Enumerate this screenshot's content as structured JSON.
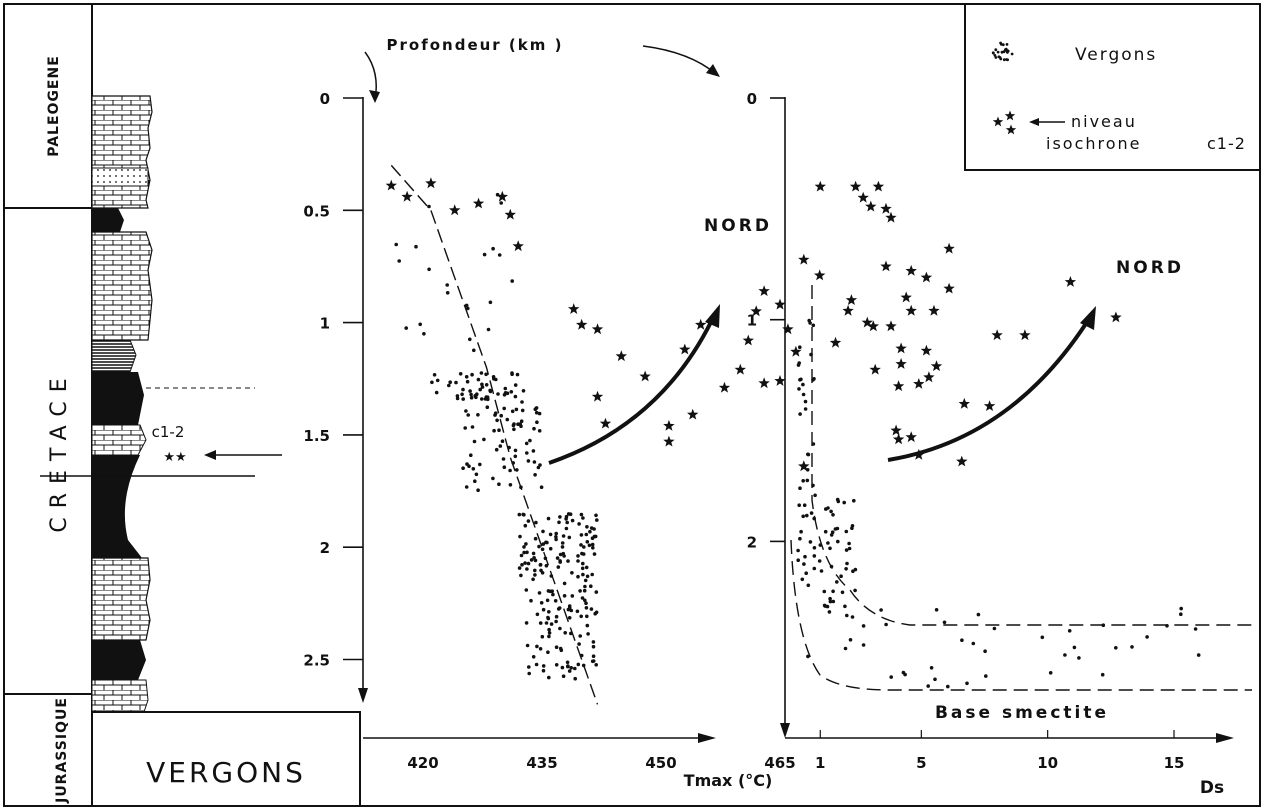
{
  "header": {
    "depth_label": "Profondeur (km )"
  },
  "stratigraphy": {
    "periods": [
      "PALEOGENE",
      "CRETACE",
      "JURASSIQUE"
    ],
    "level_label": "c1-2",
    "level_markers": "★★",
    "section_name": "VERGONS"
  },
  "legend": {
    "vergons_label": "Vergons",
    "niveau_label": "niveau",
    "isochrone_label": "isochrone",
    "isochrone_code": "c1-2"
  },
  "chart_data": [
    {
      "type": "scatter",
      "title": "",
      "xlabel": "Tmax (°C)",
      "ylabel": "Profondeur (km )",
      "x_ticks": [
        420,
        435,
        450,
        465
      ],
      "y_ticks": [
        0,
        0.5,
        1,
        1.5,
        2,
        2.5
      ],
      "y_tick_labels": [
        "0",
        "0.5",
        "1",
        "1.5",
        "2",
        "2.5"
      ],
      "y_inverted": true,
      "annotation": "NORD",
      "trend_line": [
        [
          416,
          0.3
        ],
        [
          421,
          0.5
        ],
        [
          424,
          0.8
        ],
        [
          428,
          1.2
        ],
        [
          431,
          1.6
        ],
        [
          435,
          2.0
        ],
        [
          439,
          2.4
        ],
        [
          442,
          2.7
        ]
      ],
      "series": [
        {
          "name": "Vergons",
          "marker": "dot",
          "clusters": [
            {
              "x_range": [
                416,
                432
              ],
              "y_range": [
                0.4,
                1.2
              ],
              "count": 22
            },
            {
              "x_range": [
                421,
                432
              ],
              "y_range": [
                1.22,
                1.34
              ],
              "count": 40
            },
            {
              "x_range": [
                425,
                435
              ],
              "y_range": [
                1.3,
                1.75
              ],
              "count": 80
            },
            {
              "x_range": [
                432,
                442
              ],
              "y_range": [
                1.85,
                2.15
              ],
              "count": 100
            },
            {
              "x_range": [
                433,
                442
              ],
              "y_range": [
                2.15,
                2.6
              ],
              "count": 90
            }
          ]
        },
        {
          "name": "niveau isochrone c1-2",
          "marker": "star",
          "points": [
            [
              416,
              0.39
            ],
            [
              418,
              0.44
            ],
            [
              421,
              0.38
            ],
            [
              424,
              0.5
            ],
            [
              427,
              0.47
            ],
            [
              430,
              0.44
            ],
            [
              431,
              0.52
            ],
            [
              432,
              0.66
            ],
            [
              439,
              0.94
            ],
            [
              440,
              1.01
            ],
            [
              442,
              1.03
            ],
            [
              445,
              1.15
            ],
            [
              448,
              1.24
            ],
            [
              451,
              1.53
            ],
            [
              453,
              1.12
            ],
            [
              455,
              1.01
            ],
            [
              458,
              1.29
            ],
            [
              460,
              1.21
            ],
            [
              461,
              1.08
            ],
            [
              462,
              0.95
            ],
            [
              463,
              0.86
            ],
            [
              465,
              0.92
            ],
            [
              466,
              1.03
            ],
            [
              467,
              1.13
            ],
            [
              468,
              0.72
            ],
            [
              470,
              0.79
            ],
            [
              472,
              1.09
            ],
            [
              474,
              0.9
            ],
            [
              476,
              1.0
            ],
            [
              477,
              1.21
            ],
            [
              465,
              1.26
            ],
            [
              463,
              1.27
            ],
            [
              454,
              1.41
            ],
            [
              451,
              1.46
            ],
            [
              443,
              1.45
            ],
            [
              442,
              1.33
            ],
            [
              468,
              1.64
            ]
          ]
        }
      ]
    },
    {
      "type": "scatter",
      "title": "",
      "xlabel": "Ds",
      "ylabel": "Profondeur (km )",
      "x_ticks": [
        1,
        5,
        10,
        15
      ],
      "y_ticks": [
        0,
        1,
        2
      ],
      "y_tick_labels": [
        "0",
        "1",
        "2"
      ],
      "y_inverted": true,
      "annotation": "NORD",
      "band_label": "Base smectite",
      "series": [
        {
          "name": "Vergons",
          "marker": "dot",
          "clusters": [
            {
              "x_range": [
                0.1,
                0.8
              ],
              "y_range": [
                1.0,
                2.2
              ],
              "count": 45
            },
            {
              "x_range": [
                0.9,
                2.4
              ],
              "y_range": [
                1.8,
                2.35
              ],
              "count": 45
            },
            {
              "x_range": [
                0.5,
                16
              ],
              "y_range": [
                2.3,
                2.67
              ],
              "count": 40
            }
          ]
        },
        {
          "name": "niveau isochrone c1-2",
          "marker": "star",
          "points": [
            [
              1,
              0.4
            ],
            [
              2.4,
              0.4
            ],
            [
              3.3,
              0.4
            ],
            [
              2.7,
              0.45
            ],
            [
              3.0,
              0.49
            ],
            [
              3.6,
              0.5
            ],
            [
              3.8,
              0.54
            ],
            [
              6.1,
              0.68
            ],
            [
              3.6,
              0.76
            ],
            [
              4.6,
              0.78
            ],
            [
              5.2,
              0.81
            ],
            [
              6.1,
              0.86
            ],
            [
              4.4,
              0.9
            ],
            [
              2.1,
              0.96
            ],
            [
              4.6,
              0.96
            ],
            [
              5.5,
              0.96
            ],
            [
              3.1,
              1.03
            ],
            [
              3.8,
              1.03
            ],
            [
              4.2,
              1.13
            ],
            [
              5.2,
              1.14
            ],
            [
              4.1,
              1.3
            ],
            [
              4.9,
              1.29
            ],
            [
              5.3,
              1.26
            ],
            [
              5.6,
              1.21
            ],
            [
              4.2,
              1.2
            ],
            [
              6.7,
              1.38
            ],
            [
              7.7,
              1.39
            ],
            [
              4.0,
              1.5
            ],
            [
              4.1,
              1.54
            ],
            [
              4.6,
              1.53
            ],
            [
              4.9,
              1.61
            ],
            [
              6.6,
              1.64
            ],
            [
              8.0,
              1.07
            ],
            [
              9.1,
              1.07
            ],
            [
              10.9,
              0.83
            ],
            [
              12.7,
              0.99
            ]
          ]
        }
      ]
    }
  ]
}
